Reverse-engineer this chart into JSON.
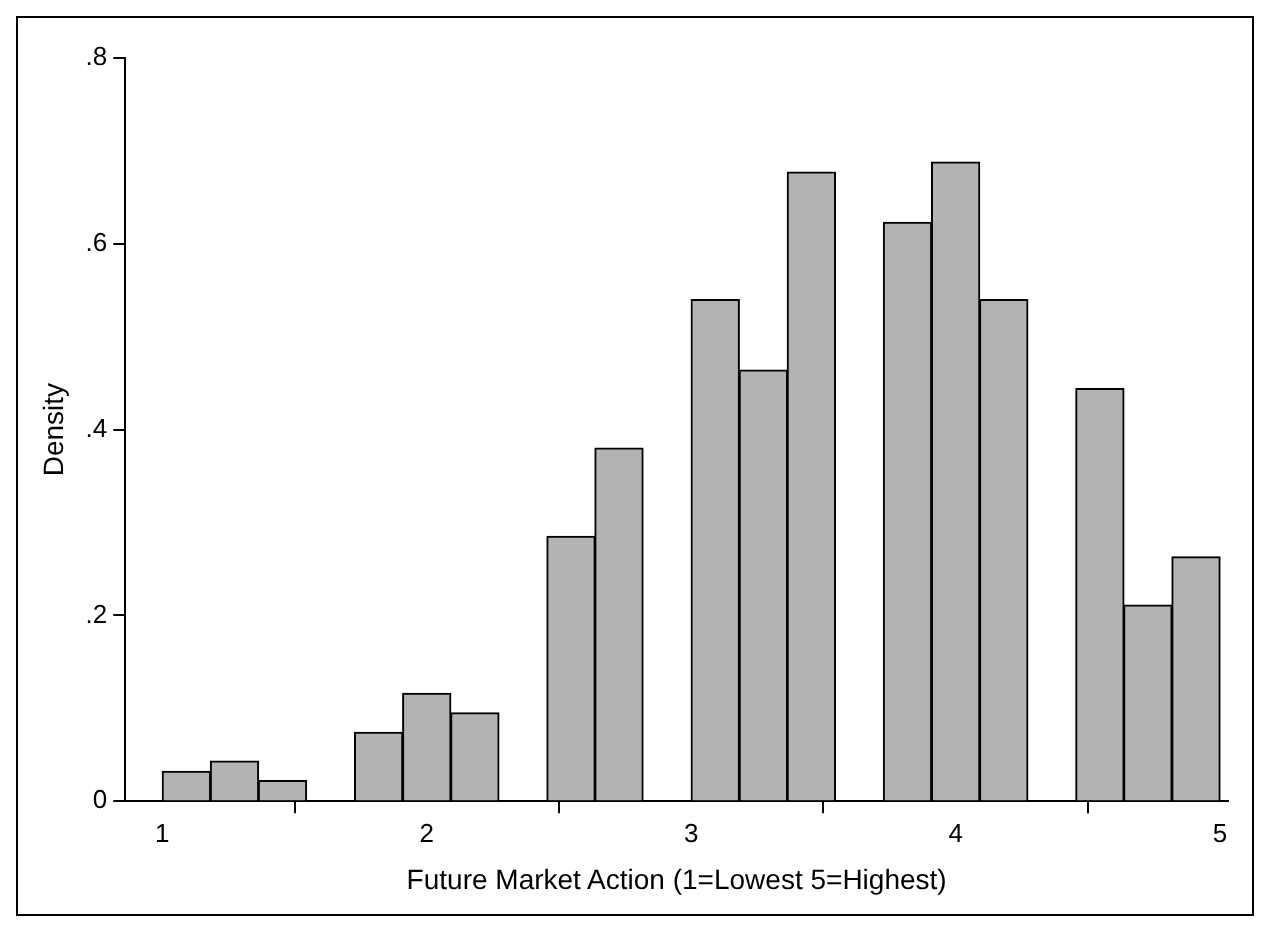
{
  "chart_data": {
    "type": "histogram",
    "xlabel": "Future Market Action (1=Lowest 5=Highest)",
    "ylabel": "Density",
    "bins": [
      1,
      1.182,
      1.364,
      1.545,
      1.727,
      1.909,
      2.091,
      2.273,
      2.455,
      2.636,
      2.818,
      3,
      3.182,
      3.364,
      3.545,
      3.727,
      3.909,
      4.091,
      4.273,
      4.455,
      4.636,
      4.818,
      5
    ],
    "values": [
      0.032,
      0.043,
      0.022,
      0,
      0.074,
      0.116,
      0.095,
      0,
      0.285,
      0.38,
      0,
      0.54,
      0.464,
      0.677,
      0,
      0.623,
      0.688,
      0.54,
      0,
      0.444,
      0.211,
      0.263
    ],
    "color": "#b3b3b3",
    "xlim": [
      0.86,
      5.03
    ],
    "xticks": [
      1,
      2,
      3,
      4,
      5
    ],
    "ylim": [
      0,
      0.8
    ],
    "yticks": [
      0,
      {
        "value": 0.2,
        "label": ".2"
      },
      {
        "value": 0.4,
        "label": ".4"
      },
      {
        "value": 0.6,
        "label": ".6"
      },
      {
        "value": 0.8,
        "label": ".8"
      }
    ],
    "grid": false,
    "legend": false
  }
}
